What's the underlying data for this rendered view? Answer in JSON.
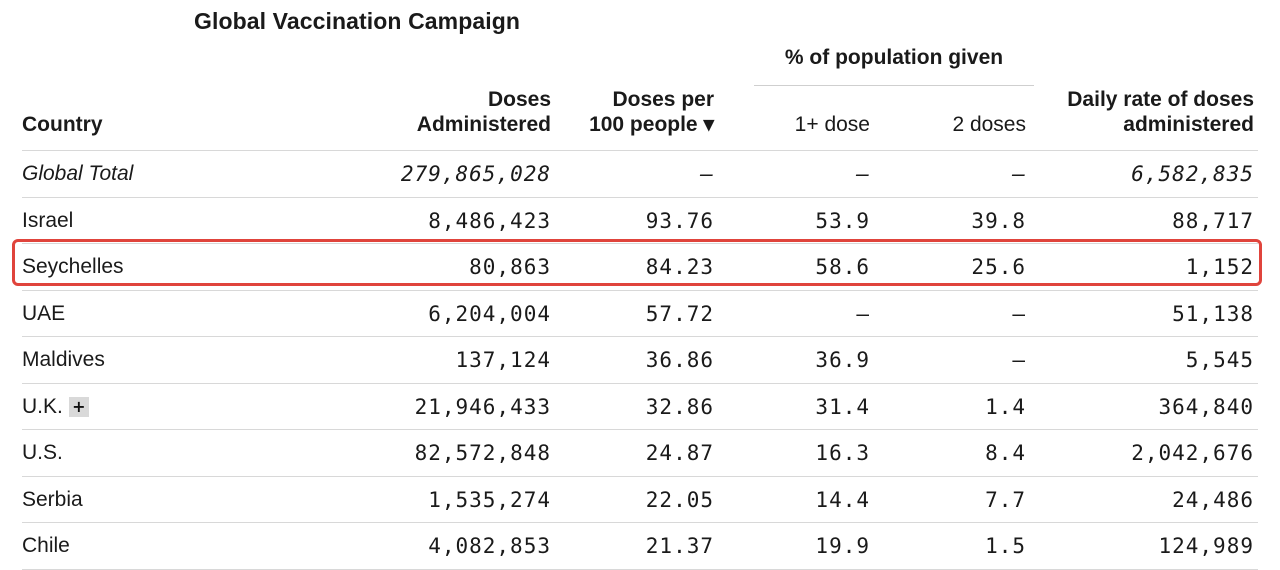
{
  "title": "Global Vaccination Campaign",
  "group_header": "% of population given",
  "columns": {
    "country": "Country",
    "doses_line1": "Doses",
    "doses_line2": "Administered",
    "per100_line1": "Doses per",
    "per100_line2": "100 people ▾",
    "one_dose": "1+ dose",
    "two_doses": "2 doses",
    "daily_line1": "Daily rate of doses",
    "daily_line2": "administered"
  },
  "highlight_color": "#e0443c",
  "rows": [
    {
      "country": "Global Total",
      "doses": "279,865,028",
      "per100": "–",
      "one_dose": "–",
      "two_doses": "–",
      "daily": "6,582,835"
    },
    {
      "country": "Israel",
      "doses": "8,486,423",
      "per100": "93.76",
      "one_dose": "53.9",
      "two_doses": "39.8",
      "daily": "88,717"
    },
    {
      "country": "Seychelles",
      "doses": "80,863",
      "per100": "84.23",
      "one_dose": "58.6",
      "two_doses": "25.6",
      "daily": "1,152"
    },
    {
      "country": "UAE",
      "doses": "6,204,004",
      "per100": "57.72",
      "one_dose": "–",
      "two_doses": "–",
      "daily": "51,138"
    },
    {
      "country": "Maldives",
      "doses": "137,124",
      "per100": "36.86",
      "one_dose": "36.9",
      "two_doses": "–",
      "daily": "5,545"
    },
    {
      "country": "U.K.",
      "expand": "+",
      "doses": "21,946,433",
      "per100": "32.86",
      "one_dose": "31.4",
      "two_doses": "1.4",
      "daily": "364,840"
    },
    {
      "country": "U.S.",
      "doses": "82,572,848",
      "per100": "24.87",
      "one_dose": "16.3",
      "two_doses": "8.4",
      "daily": "2,042,676"
    },
    {
      "country": "Serbia",
      "doses": "1,535,274",
      "per100": "22.05",
      "one_dose": "14.4",
      "two_doses": "7.7",
      "daily": "24,486"
    },
    {
      "country": "Chile",
      "doses": "4,082,853",
      "per100": "21.37",
      "one_dose": "19.9",
      "two_doses": "1.5",
      "daily": "124,989"
    }
  ]
}
